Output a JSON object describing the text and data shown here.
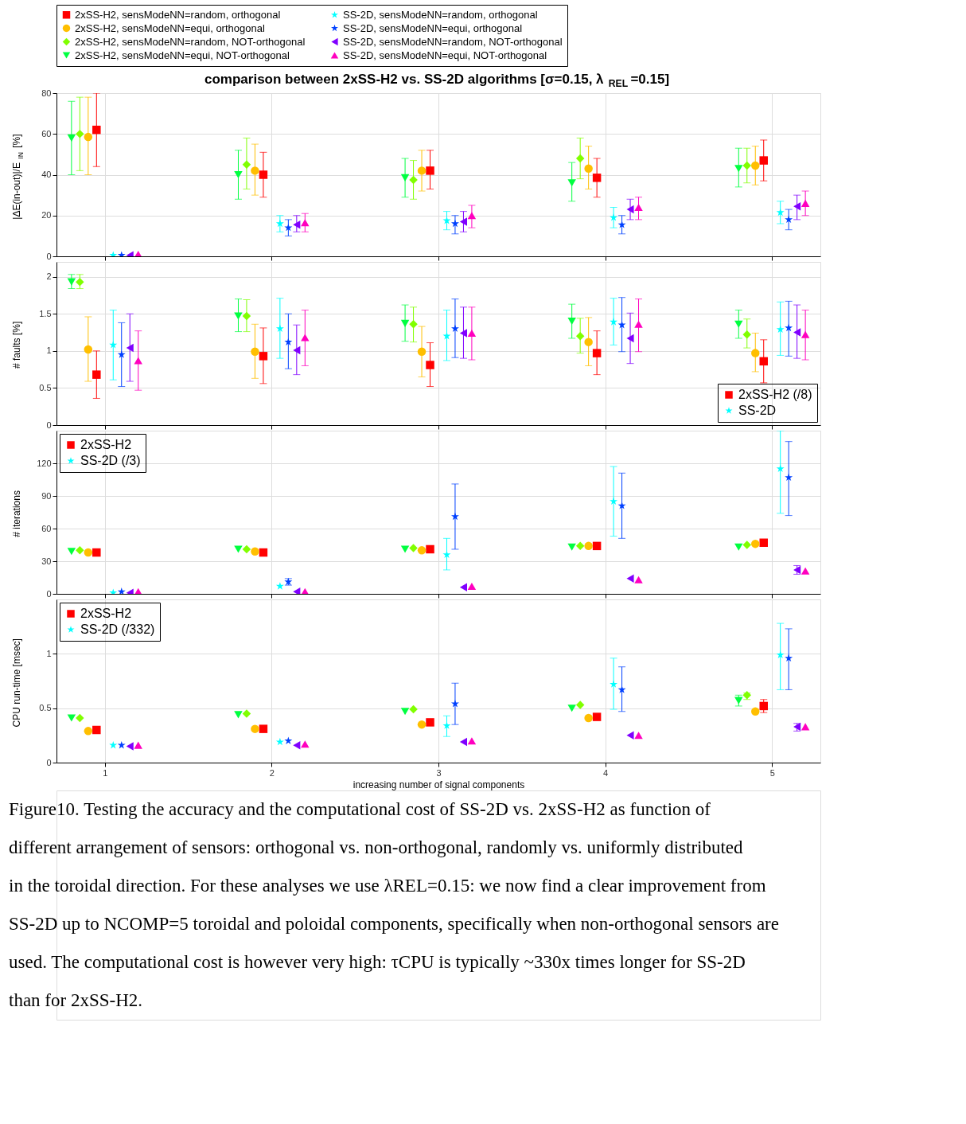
{
  "chart_data": [
    {
      "type": "scatter",
      "title": "comparison between 2xSS-H2 vs. SS-2D algorithms [σ=0.15, λ$_{REL}$=0.15]",
      "ylabel": "|ΔE(in-out)|/E$_{IN}$ [%]",
      "xlim": [
        0.71,
        5.29
      ],
      "ylim": [
        0,
        80
      ],
      "xticks": [
        1,
        2,
        3,
        4,
        5
      ],
      "yticks": [
        0,
        20,
        40,
        60,
        80
      ],
      "grid": true,
      "legend": "top",
      "tick_labels": "y",
      "series": [
        {
          "name": "2xSS-H2, sensModeNN=random, orthogonal",
          "color": "#ff0000",
          "marker": "square",
          "x": [
            0.95,
            1.95,
            2.95,
            3.95,
            4.95
          ],
          "values": [
            62,
            40,
            42,
            38.5,
            47
          ],
          "errors": [
            [
              44,
              80
            ],
            [
              29,
              51
            ],
            [
              33,
              52
            ],
            [
              29,
              48
            ],
            [
              37,
              57
            ]
          ]
        },
        {
          "name": "2xSS-H2, sensModeNN=equi, orthogonal",
          "color": "#ffbf00",
          "marker": "circle",
          "x": [
            0.9,
            1.9,
            2.9,
            3.9,
            4.9
          ],
          "values": [
            58.5,
            42,
            42,
            43,
            44.5
          ],
          "errors": [
            [
              40,
              78
            ],
            [
              30,
              55
            ],
            [
              32,
              52
            ],
            [
              33,
              54
            ],
            [
              35,
              54
            ]
          ]
        },
        {
          "name": "2xSS-H2, sensModeNN=random, NOT-orthogonal",
          "color": "#80ff00",
          "marker": "diamond",
          "x": [
            0.85,
            1.85,
            2.85,
            3.85,
            4.85
          ],
          "values": [
            60,
            45,
            37.5,
            48,
            44.5
          ],
          "errors": [
            [
              42,
              78
            ],
            [
              33,
              58
            ],
            [
              28,
              47
            ],
            [
              38,
              58
            ],
            [
              36,
              53
            ]
          ]
        },
        {
          "name": "2xSS-H2, sensModeNN=equi, NOT-orthogonal",
          "color": "#00ff40",
          "marker": "triangle-down",
          "x": [
            0.8,
            1.8,
            2.8,
            3.8,
            4.8
          ],
          "values": [
            58,
            40,
            38.5,
            36,
            43
          ],
          "errors": [
            [
              40,
              76
            ],
            [
              28,
              52
            ],
            [
              29,
              48
            ],
            [
              27,
              46
            ],
            [
              34,
              53
            ]
          ]
        },
        {
          "name": "SS-2D, sensModeNN=random, orthogonal",
          "color": "#00ffff",
          "marker": "star",
          "x": [
            1.05,
            2.05,
            3.05,
            4.05,
            5.05
          ],
          "values": [
            0.5,
            16,
            17.5,
            19,
            21.5
          ],
          "errors": [
            null,
            [
              12,
              20
            ],
            [
              13,
              22
            ],
            [
              14,
              24
            ],
            [
              16,
              27
            ]
          ]
        },
        {
          "name": "SS-2D, sensModeNN=equi, orthogonal",
          "color": "#0040ff",
          "marker": "star",
          "x": [
            1.1,
            2.1,
            3.1,
            4.1,
            5.1
          ],
          "values": [
            0.5,
            14,
            16,
            15.5,
            18
          ],
          "errors": [
            null,
            [
              10,
              18
            ],
            [
              11,
              20
            ],
            [
              11,
              20
            ],
            [
              13,
              23
            ]
          ]
        },
        {
          "name": "SS-2D, sensModeNN=random, NOT-orthogonal",
          "color": "#8000ff",
          "marker": "triangle-left",
          "x": [
            1.15,
            2.15,
            3.15,
            4.15,
            5.15
          ],
          "values": [
            0.5,
            15.5,
            17,
            23,
            24.5
          ],
          "errors": [
            null,
            [
              12,
              20
            ],
            [
              12,
              22
            ],
            [
              18,
              28
            ],
            [
              18,
              30
            ]
          ]
        },
        {
          "name": "SS-2D, sensModeNN=equi, NOT-orthogonal",
          "color": "#ff00bf",
          "marker": "triangle-up",
          "x": [
            1.2,
            2.2,
            3.2,
            4.2,
            5.2
          ],
          "values": [
            1,
            16.5,
            20,
            24,
            26
          ],
          "errors": [
            null,
            [
              12,
              21
            ],
            [
              14,
              25
            ],
            [
              18,
              29
            ],
            [
              20,
              32
            ]
          ]
        }
      ]
    },
    {
      "type": "scatter",
      "ylabel": "# faults [%]",
      "xlim": [
        0.71,
        5.29
      ],
      "ylim": [
        0,
        2.2
      ],
      "xticks": [
        1,
        2,
        3,
        4,
        5
      ],
      "yticks": [
        0,
        0.5,
        1,
        1.5,
        2
      ],
      "grid": true,
      "legend": "bottom right",
      "tick_labels": "y",
      "series": [
        {
          "name": "2xSS-H2 (/8)",
          "color": "#ff0000",
          "marker": "square",
          "x": [
            0.95,
            1.95,
            2.95,
            3.95,
            4.95
          ],
          "values": [
            0.68,
            0.93,
            0.81,
            0.97,
            0.86
          ],
          "errors": [
            [
              0.36,
              1.0
            ],
            [
              0.56,
              1.31
            ],
            [
              0.52,
              1.11
            ],
            [
              0.68,
              1.27
            ],
            [
              0.57,
              1.15
            ]
          ]
        },
        {
          "color": "#ffbf00",
          "marker": "circle",
          "x": [
            0.9,
            1.9,
            2.9,
            3.9,
            4.9
          ],
          "values": [
            1.02,
            0.99,
            0.99,
            1.12,
            0.97
          ],
          "errors": [
            [
              0.59,
              1.46
            ],
            [
              0.63,
              1.36
            ],
            [
              0.65,
              1.33
            ],
            [
              0.8,
              1.45
            ],
            [
              0.72,
              1.24
            ]
          ]
        },
        {
          "color": "#80ff00",
          "marker": "diamond",
          "x": [
            0.85,
            1.85,
            2.85,
            3.85,
            4.85
          ],
          "values": [
            1.93,
            1.47,
            1.36,
            1.2,
            1.22
          ],
          "errors": [
            [
              1.84,
              2.03
            ],
            [
              1.26,
              1.69
            ],
            [
              1.12,
              1.59
            ],
            [
              0.97,
              1.44
            ],
            [
              1.04,
              1.43
            ]
          ]
        },
        {
          "color": "#00ff40",
          "marker": "triangle-down",
          "x": [
            0.8,
            1.8,
            2.8,
            3.8,
            4.8
          ],
          "values": [
            1.93,
            1.47,
            1.37,
            1.4,
            1.36
          ],
          "errors": [
            [
              1.84,
              2.03
            ],
            [
              1.26,
              1.7
            ],
            [
              1.13,
              1.62
            ],
            [
              1.17,
              1.63
            ],
            [
              1.17,
              1.55
            ]
          ]
        },
        {
          "name": "SS-2D",
          "color": "#00ffff",
          "marker": "star",
          "x": [
            1.05,
            2.05,
            3.05,
            4.05,
            5.05
          ],
          "values": [
            1.08,
            1.3,
            1.2,
            1.39,
            1.29
          ],
          "errors": [
            [
              0.61,
              1.55
            ],
            [
              0.9,
              1.71
            ],
            [
              0.87,
              1.55
            ],
            [
              1.08,
              1.71
            ],
            [
              0.94,
              1.66
            ]
          ]
        },
        {
          "color": "#0040ff",
          "marker": "star",
          "x": [
            1.1,
            2.1,
            3.1,
            4.1,
            5.1
          ],
          "values": [
            0.95,
            1.12,
            1.3,
            1.35,
            1.31
          ],
          "errors": [
            [
              0.52,
              1.38
            ],
            [
              0.76,
              1.5
            ],
            [
              0.91,
              1.7
            ],
            [
              0.99,
              1.72
            ],
            [
              0.93,
              1.67
            ]
          ]
        },
        {
          "color": "#8000ff",
          "marker": "triangle-left",
          "x": [
            1.15,
            2.15,
            3.15,
            4.15,
            5.15
          ],
          "values": [
            1.04,
            1.01,
            1.24,
            1.17,
            1.25
          ],
          "errors": [
            [
              0.59,
              1.5
            ],
            [
              0.68,
              1.35
            ],
            [
              0.9,
              1.59
            ],
            [
              0.83,
              1.51
            ],
            [
              0.9,
              1.62
            ]
          ]
        },
        {
          "color": "#ff00bf",
          "marker": "triangle-up",
          "x": [
            1.2,
            2.2,
            3.2,
            4.2,
            5.2
          ],
          "values": [
            0.87,
            1.18,
            1.24,
            1.36,
            1.22
          ],
          "errors": [
            [
              0.47,
              1.27
            ],
            [
              0.8,
              1.55
            ],
            [
              0.88,
              1.59
            ],
            [
              0.99,
              1.7
            ],
            [
              0.88,
              1.55
            ]
          ]
        }
      ]
    },
    {
      "type": "scatter",
      "ylabel": "# iterations",
      "xlim": [
        0.71,
        5.29
      ],
      "ylim": [
        0,
        150
      ],
      "xticks": [
        1,
        2,
        3,
        4,
        5
      ],
      "yticks": [
        0,
        30,
        60,
        90,
        120
      ],
      "grid": true,
      "legend": "top left",
      "tick_labels": "y",
      "series": [
        {
          "name": "2xSS-H2",
          "color": "#ff0000",
          "marker": "square",
          "x": [
            0.95,
            1.95,
            2.95,
            3.95,
            4.95
          ],
          "values": [
            38,
            38,
            41,
            44,
            47
          ]
        },
        {
          "color": "#ffbf00",
          "marker": "circle",
          "x": [
            0.9,
            1.9,
            2.9,
            3.9,
            4.9
          ],
          "values": [
            38,
            39,
            40,
            44,
            46
          ]
        },
        {
          "color": "#80ff00",
          "marker": "diamond",
          "x": [
            0.85,
            1.85,
            2.85,
            3.85,
            4.85
          ],
          "values": [
            40,
            41,
            42,
            44,
            45
          ]
        },
        {
          "color": "#00ff40",
          "marker": "triangle-down",
          "x": [
            0.8,
            1.8,
            2.8,
            3.8,
            4.8
          ],
          "values": [
            39,
            41,
            41,
            43,
            43
          ]
        },
        {
          "name": "SS-2D (/3)",
          "color": "#00ffff",
          "marker": "star",
          "x": [
            1.05,
            2.05,
            3.05,
            4.05,
            5.05
          ],
          "values": [
            1,
            7,
            36,
            85,
            115
          ],
          "errors": [
            null,
            null,
            [
              22,
              51
            ],
            [
              53,
              117
            ],
            [
              74,
              150
            ]
          ]
        },
        {
          "color": "#0040ff",
          "marker": "star",
          "x": [
            1.1,
            2.1,
            3.1,
            4.1,
            5.1
          ],
          "values": [
            2,
            11,
            71,
            81,
            107
          ],
          "errors": [
            null,
            [
              8,
              14
            ],
            [
              41,
              101
            ],
            [
              51,
              111
            ],
            [
              72,
              140
            ]
          ]
        },
        {
          "color": "#8000ff",
          "marker": "triangle-left",
          "x": [
            1.15,
            2.15,
            3.15,
            4.15,
            5.15
          ],
          "values": [
            1,
            2,
            6,
            14,
            22
          ],
          "errors": [
            null,
            null,
            null,
            null,
            [
              18,
              26
            ]
          ]
        },
        {
          "color": "#ff00bf",
          "marker": "triangle-up",
          "x": [
            1.2,
            2.2,
            3.2,
            4.2,
            5.2
          ],
          "values": [
            2,
            2,
            7,
            13,
            21
          ]
        }
      ]
    },
    {
      "type": "scatter",
      "ylabel": "CPU run-time [msec]",
      "xlabel": "increasing number of signal components",
      "xlim": [
        0.71,
        5.29
      ],
      "ylim": [
        0,
        1.5
      ],
      "xticks": [
        1,
        2,
        3,
        4,
        5
      ],
      "yticks": [
        0,
        0.5,
        1
      ],
      "grid": true,
      "legend": "top left",
      "annotations": [
        "Figure10. Testing the accuracy and the computational cost of SS-2D vs. 2xSS-H2 as function of different arrangement of sensors: orthogonal vs. non-orthogonal, randomly vs. uniformly distributed in the toroidal direction. For these analyses we use λREL=0.15: we now find a clear improvement from SS-2D up to NCOMP=5 toroidal and poloidal components, specifically when non-orthogonal sensors are used. The computational cost is however very high: τCPU is typically ~330x times longer for SS-2D than for 2xSS-H2."
      ],
      "series": [
        {
          "name": "2xSS-H2",
          "color": "#ff0000",
          "marker": "square",
          "x": [
            0.95,
            1.95,
            2.95,
            3.95,
            4.95
          ],
          "values": [
            0.3,
            0.31,
            0.37,
            0.42,
            0.52
          ],
          "errors": [
            null,
            null,
            null,
            null,
            [
              0.46,
              0.58
            ]
          ]
        },
        {
          "color": "#ffbf00",
          "marker": "circle",
          "x": [
            0.9,
            1.9,
            2.9,
            3.9,
            4.9
          ],
          "values": [
            0.29,
            0.31,
            0.35,
            0.41,
            0.47
          ]
        },
        {
          "color": "#80ff00",
          "marker": "diamond",
          "x": [
            0.85,
            1.85,
            2.85,
            3.85,
            4.85
          ],
          "values": [
            0.41,
            0.45,
            0.49,
            0.53,
            0.62
          ],
          "errors": [
            null,
            null,
            null,
            null,
            [
              0.58,
              0.64
            ]
          ]
        },
        {
          "color": "#00ff40",
          "marker": "triangle-down",
          "x": [
            0.8,
            1.8,
            2.8,
            3.8,
            4.8
          ],
          "values": [
            0.41,
            0.44,
            0.47,
            0.5,
            0.57
          ],
          "errors": [
            null,
            null,
            null,
            null,
            [
              0.52,
              0.62
            ]
          ]
        },
        {
          "name": "SS-2D (/332)",
          "color": "#00ffff",
          "marker": "star",
          "x": [
            1.05,
            2.05,
            3.05,
            4.05,
            5.05
          ],
          "values": [
            0.16,
            0.19,
            0.34,
            0.72,
            0.99
          ],
          "errors": [
            null,
            null,
            [
              0.24,
              0.43
            ],
            [
              0.49,
              0.96
            ],
            [
              0.67,
              1.28
            ]
          ]
        },
        {
          "color": "#0040ff",
          "marker": "star",
          "x": [
            1.1,
            2.1,
            3.1,
            4.1,
            5.1
          ],
          "values": [
            0.16,
            0.2,
            0.54,
            0.67,
            0.96
          ],
          "errors": [
            null,
            null,
            [
              0.35,
              0.73
            ],
            [
              0.47,
              0.88
            ],
            [
              0.67,
              1.23
            ]
          ]
        },
        {
          "color": "#8000ff",
          "marker": "triangle-left",
          "x": [
            1.15,
            2.15,
            3.15,
            4.15,
            5.15
          ],
          "values": [
            0.15,
            0.16,
            0.19,
            0.25,
            0.33
          ],
          "errors": [
            null,
            null,
            null,
            null,
            [
              0.29,
              0.36
            ]
          ]
        },
        {
          "color": "#ff00bf",
          "marker": "triangle-up",
          "x": [
            1.2,
            2.2,
            3.2,
            4.2,
            5.2
          ],
          "values": [
            0.16,
            0.17,
            0.2,
            0.25,
            0.33
          ]
        }
      ]
    }
  ]
}
